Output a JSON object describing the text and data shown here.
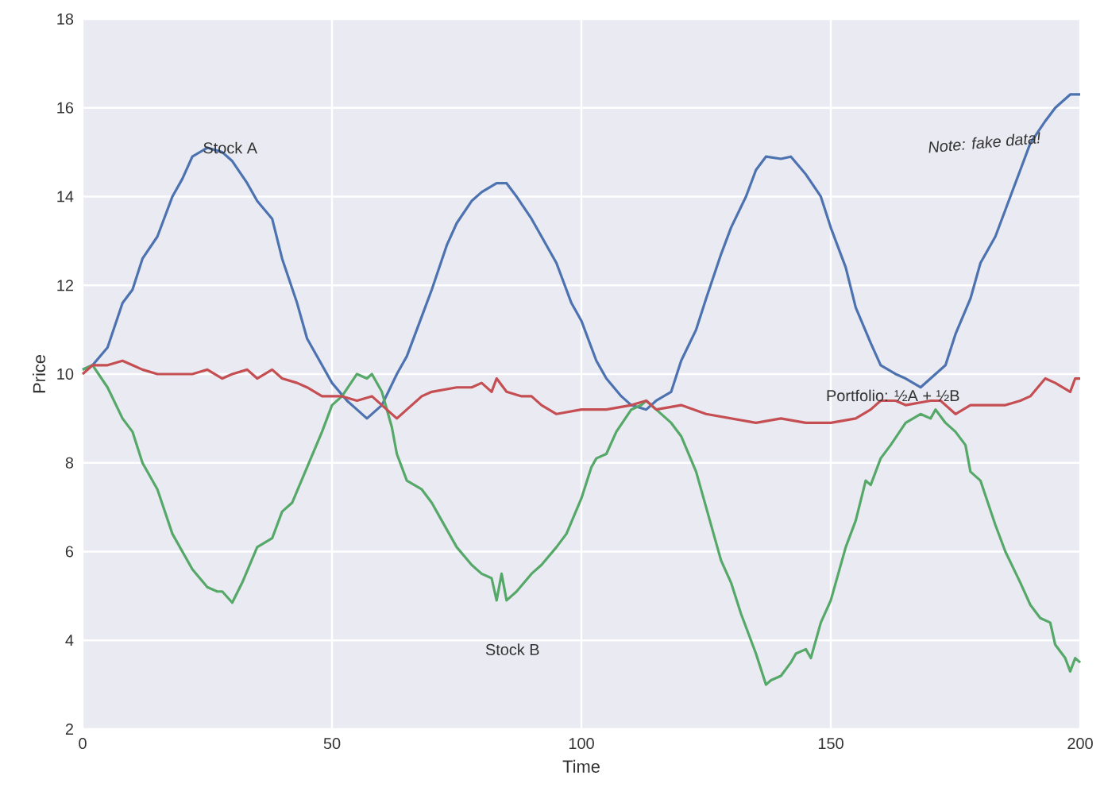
{
  "chart_data": {
    "type": "line",
    "xlabel": "Time",
    "ylabel": "Price",
    "xlim": [
      0,
      200
    ],
    "ylim": [
      2,
      18
    ],
    "xticks": [
      0,
      50,
      100,
      150,
      200
    ],
    "yticks": [
      2,
      4,
      6,
      8,
      10,
      12,
      14,
      16,
      18
    ],
    "grid": true,
    "annotations": [
      "Note: fake data!"
    ],
    "series": [
      {
        "name": "Stock A",
        "color": "#4c72b0",
        "x": [
          0,
          2,
          5,
          8,
          10,
          12,
          15,
          18,
          20,
          22,
          25,
          28,
          30,
          33,
          35,
          38,
          40,
          43,
          45,
          48,
          50,
          53,
          55,
          57,
          60,
          63,
          65,
          68,
          70,
          73,
          75,
          78,
          80,
          83,
          85,
          87,
          90,
          92,
          95,
          98,
          100,
          103,
          105,
          108,
          110,
          113,
          115,
          118,
          120,
          123,
          125,
          128,
          130,
          133,
          135,
          137,
          140,
          142,
          145,
          148,
          150,
          153,
          155,
          158,
          160,
          163,
          165,
          168,
          170,
          173,
          175,
          178,
          180,
          183,
          185,
          188,
          190,
          193,
          195,
          198,
          200
        ],
        "values": [
          10.1,
          10.2,
          10.6,
          11.6,
          11.9,
          12.6,
          13.1,
          14.0,
          14.4,
          14.9,
          15.1,
          15.0,
          14.8,
          14.3,
          13.9,
          13.5,
          12.6,
          11.6,
          10.8,
          10.2,
          9.8,
          9.4,
          9.2,
          9.0,
          9.3,
          10.0,
          10.4,
          11.3,
          11.9,
          12.9,
          13.4,
          13.9,
          14.1,
          14.3,
          14.3,
          14.0,
          13.5,
          13.1,
          12.5,
          11.6,
          11.2,
          10.3,
          9.9,
          9.5,
          9.3,
          9.2,
          9.4,
          9.6,
          10.3,
          11.0,
          11.7,
          12.7,
          13.3,
          14.0,
          14.6,
          14.9,
          14.85,
          14.9,
          14.5,
          14.0,
          13.3,
          12.4,
          11.5,
          10.7,
          10.2,
          10.0,
          9.9,
          9.7,
          9.9,
          10.2,
          10.9,
          11.7,
          12.5,
          13.1,
          13.7,
          14.6,
          15.2,
          15.7,
          16.0,
          16.3,
          16.3
        ]
      },
      {
        "name": "Stock B",
        "color": "#55a868",
        "x": [
          0,
          2,
          5,
          8,
          10,
          12,
          15,
          18,
          20,
          22,
          25,
          27,
          28,
          30,
          32,
          35,
          38,
          40,
          42,
          45,
          48,
          50,
          52,
          55,
          57,
          58,
          60,
          62,
          63,
          65,
          68,
          70,
          72,
          75,
          78,
          80,
          82,
          83,
          84,
          85,
          87,
          90,
          92,
          95,
          97,
          100,
          102,
          103,
          105,
          107,
          110,
          112,
          113,
          115,
          118,
          120,
          123,
          125,
          128,
          130,
          132,
          135,
          137,
          138,
          140,
          142,
          143,
          145,
          146,
          148,
          150,
          153,
          155,
          157,
          158,
          160,
          162,
          165,
          168,
          170,
          171,
          173,
          175,
          177,
          178,
          180,
          183,
          185,
          188,
          190,
          192,
          194,
          195,
          197,
          198,
          199,
          200
        ],
        "values": [
          10.1,
          10.2,
          9.7,
          9.0,
          8.7,
          8.0,
          7.4,
          6.4,
          6.0,
          5.6,
          5.2,
          5.1,
          5.1,
          4.85,
          5.3,
          6.1,
          6.3,
          6.9,
          7.1,
          7.9,
          8.7,
          9.3,
          9.5,
          10.0,
          9.9,
          10.0,
          9.6,
          8.8,
          8.2,
          7.6,
          7.4,
          7.1,
          6.7,
          6.1,
          5.7,
          5.5,
          5.4,
          4.9,
          5.5,
          4.9,
          5.1,
          5.5,
          5.7,
          6.1,
          6.4,
          7.2,
          7.9,
          8.1,
          8.2,
          8.7,
          9.2,
          9.3,
          9.4,
          9.2,
          8.9,
          8.6,
          7.8,
          7.0,
          5.8,
          5.3,
          4.6,
          3.7,
          3.0,
          3.1,
          3.2,
          3.5,
          3.7,
          3.8,
          3.6,
          4.4,
          4.9,
          6.1,
          6.7,
          7.6,
          7.5,
          8.1,
          8.4,
          8.9,
          9.1,
          9.0,
          9.2,
          8.9,
          8.7,
          8.4,
          7.8,
          7.6,
          6.6,
          6.0,
          5.3,
          4.8,
          4.5,
          4.4,
          3.9,
          3.6,
          3.3,
          3.6,
          3.5
        ]
      },
      {
        "name": "Portfolio: ½A + ½B",
        "color": "#c44e52",
        "x": [
          0,
          2,
          5,
          8,
          10,
          12,
          15,
          20,
          22,
          25,
          28,
          30,
          33,
          35,
          38,
          40,
          43,
          45,
          48,
          50,
          52,
          55,
          58,
          60,
          63,
          65,
          68,
          70,
          75,
          78,
          80,
          82,
          83,
          85,
          88,
          90,
          92,
          95,
          100,
          105,
          110,
          113,
          115,
          120,
          125,
          130,
          135,
          140,
          145,
          150,
          155,
          158,
          160,
          163,
          165,
          170,
          172,
          175,
          178,
          182,
          185,
          188,
          190,
          193,
          195,
          198,
          199,
          200
        ],
        "values": [
          10.0,
          10.2,
          10.2,
          10.3,
          10.2,
          10.1,
          10.0,
          10.0,
          10.0,
          10.1,
          9.9,
          10.0,
          10.1,
          9.9,
          10.1,
          9.9,
          9.8,
          9.7,
          9.5,
          9.5,
          9.5,
          9.4,
          9.5,
          9.3,
          9.0,
          9.2,
          9.5,
          9.6,
          9.7,
          9.7,
          9.8,
          9.6,
          9.9,
          9.6,
          9.5,
          9.5,
          9.3,
          9.1,
          9.2,
          9.2,
          9.3,
          9.4,
          9.2,
          9.3,
          9.1,
          9.0,
          8.9,
          9.0,
          8.9,
          8.9,
          9.0,
          9.2,
          9.4,
          9.4,
          9.3,
          9.4,
          9.4,
          9.1,
          9.3,
          9.3,
          9.3,
          9.4,
          9.5,
          9.9,
          9.8,
          9.6,
          9.9,
          9.9
        ]
      }
    ]
  }
}
